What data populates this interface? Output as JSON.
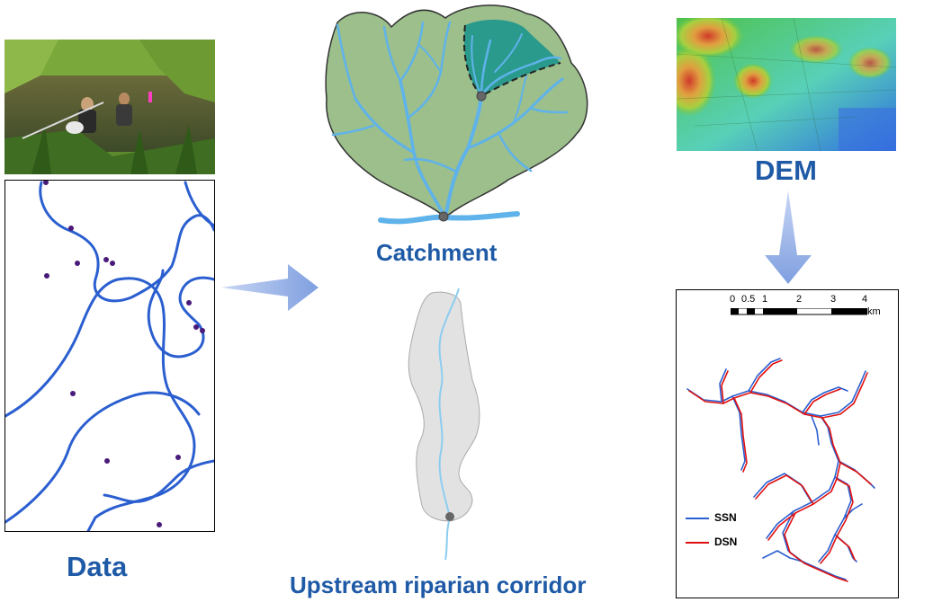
{
  "labels": {
    "data": "Data",
    "catchment": "Catchment",
    "dem": "DEM",
    "corridor": "Upstream riparian corridor"
  },
  "map_legend": {
    "scale_ticks": [
      "0",
      "0.5",
      "1",
      "2",
      "3",
      "4"
    ],
    "scale_unit": "km",
    "ssn": "SSN",
    "dsn": "DSN"
  },
  "colors": {
    "title_blue": "#1f5aa6",
    "stream_blue": "#5fb3ea",
    "catchment_green": "#9cbf8c",
    "subcatchment_teal": "#2a9a8c",
    "corridor_grey": "#e2e2e2",
    "ssn_line": "#2b5fd0",
    "dsn_line": "#e01010"
  },
  "icons": [
    "arrow-right-icon",
    "arrow-down-icon"
  ]
}
